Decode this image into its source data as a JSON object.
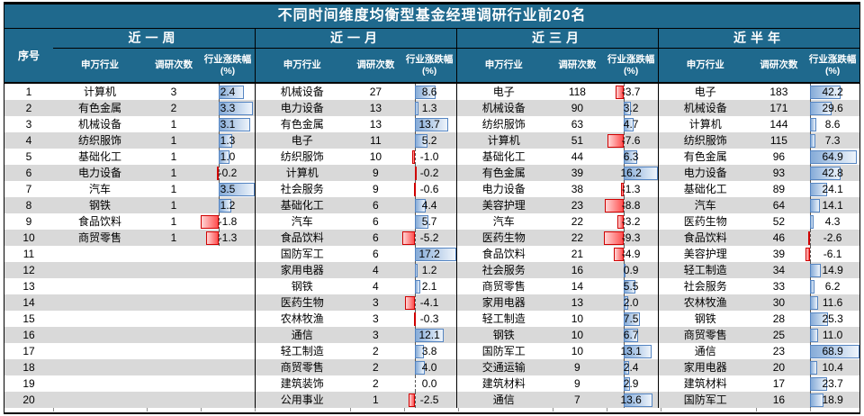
{
  "title": "不同时间维度均衡型基金经理调研行业前20名",
  "headers": {
    "rank": "序号",
    "industry": "申万行业",
    "count": "调研次数",
    "change": "行业涨跌幅",
    "change_unit": "(%)"
  },
  "ranks": [
    1,
    2,
    3,
    4,
    5,
    6,
    7,
    8,
    9,
    10,
    11,
    12,
    13,
    14,
    15,
    16,
    17,
    18,
    19,
    20
  ],
  "colors": {
    "header_bg": "#1F698D",
    "stripe": "#D9D9D9",
    "positive_bar_border": "#5585C2",
    "positive_bar_fill": "#85ABD8",
    "negative_bar_border": "#D00000",
    "negative_bar_fill": "#FF5050"
  },
  "chart_data": {
    "type": "table",
    "title": "不同时间维度均衡型基金经理调研行业前20名",
    "rank_header": "序号",
    "columns": [
      "申万行业",
      "调研次数",
      "行业涨跌幅(%)"
    ],
    "period_labels": [
      "近一周",
      "近一月",
      "近三月",
      "近半年"
    ],
    "bar_note": "positive change = blue data bar right of dashed axis, negative = red data bar left of axis",
    "periods": [
      {
        "name": "近一周",
        "rows": [
          [
            "计算机",
            3,
            2.4
          ],
          [
            "有色金属",
            2,
            3.3
          ],
          [
            "机械设备",
            1,
            3.1
          ],
          [
            "纺织服饰",
            1,
            1.3
          ],
          [
            "基础化工",
            1,
            1.0
          ],
          [
            "电力设备",
            1,
            -0.2
          ],
          [
            "汽车",
            1,
            3.5
          ],
          [
            "钢铁",
            1,
            1.2
          ],
          [
            "食品饮料",
            1,
            -1.8
          ],
          [
            "商贸零售",
            1,
            -1.3
          ],
          null,
          null,
          null,
          null,
          null,
          null,
          null,
          null,
          null,
          null
        ]
      },
      {
        "name": "近一月",
        "rows": [
          [
            "机械设备",
            27,
            8.6
          ],
          [
            "电力设备",
            13,
            1.3
          ],
          [
            "有色金属",
            13,
            13.7
          ],
          [
            "电子",
            11,
            5.2
          ],
          [
            "纺织服饰",
            10,
            -1.0
          ],
          [
            "计算机",
            9,
            -0.2
          ],
          [
            "社会服务",
            9,
            -0.6
          ],
          [
            "基础化工",
            6,
            4.4
          ],
          [
            "汽车",
            6,
            5.7
          ],
          [
            "食品饮料",
            6,
            -5.2
          ],
          [
            "国防军工",
            6,
            17.2
          ],
          [
            "家用电器",
            4,
            1.2
          ],
          [
            "钢铁",
            4,
            2.1
          ],
          [
            "医药生物",
            3,
            -4.1
          ],
          [
            "农林牧渔",
            3,
            -0.3
          ],
          [
            "通信",
            3,
            12.1
          ],
          [
            "轻工制造",
            2,
            3.8
          ],
          [
            "商贸零售",
            2,
            4.0
          ],
          [
            "建筑装饰",
            2,
            0.0
          ],
          [
            "公用事业",
            1,
            -2.5
          ]
        ]
      },
      {
        "name": "近三月",
        "rows": [
          [
            "电子",
            118,
            -3.7
          ],
          [
            "机械设备",
            90,
            3.2
          ],
          [
            "纺织服饰",
            63,
            4.7
          ],
          [
            "计算机",
            51,
            -7.6
          ],
          [
            "基础化工",
            44,
            6.3
          ],
          [
            "有色金属",
            39,
            16.2
          ],
          [
            "电力设备",
            38,
            -1.3
          ],
          [
            "美容护理",
            23,
            -8.8
          ],
          [
            "汽车",
            22,
            -3.2
          ],
          [
            "医药生物",
            22,
            -9.3
          ],
          [
            "食品饮料",
            21,
            -4.9
          ],
          [
            "社会服务",
            16,
            0.9
          ],
          [
            "商贸零售",
            14,
            5.5
          ],
          [
            "家用电器",
            13,
            2.0
          ],
          [
            "轻工制造",
            10,
            7.5
          ],
          [
            "钢铁",
            10,
            6.7
          ],
          [
            "国防军工",
            10,
            13.1
          ],
          [
            "交通运输",
            9,
            2.4
          ],
          [
            "建筑材料",
            9,
            2.9
          ],
          [
            "通信",
            7,
            13.6
          ]
        ]
      },
      {
        "name": "近半年",
        "rows": [
          [
            "电子",
            183,
            42.2
          ],
          [
            "机械设备",
            171,
            29.6
          ],
          [
            "计算机",
            144,
            8.6
          ],
          [
            "纺织服饰",
            115,
            7.3
          ],
          [
            "有色金属",
            96,
            64.9
          ],
          [
            "电力设备",
            93,
            42.8
          ],
          [
            "基础化工",
            89,
            24.1
          ],
          [
            "汽车",
            64,
            14.1
          ],
          [
            "医药生物",
            52,
            4.3
          ],
          [
            "食品饮料",
            46,
            -2.6
          ],
          [
            "美容护理",
            39,
            -6.1
          ],
          [
            "轻工制造",
            34,
            14.9
          ],
          [
            "社会服务",
            33,
            6.2
          ],
          [
            "农林牧渔",
            30,
            11.6
          ],
          [
            "钢铁",
            28,
            25.3
          ],
          [
            "商贸零售",
            25,
            11.0
          ],
          [
            "通信",
            23,
            68.9
          ],
          [
            "家用电器",
            20,
            10.4
          ],
          [
            "建筑材料",
            17,
            23.7
          ],
          [
            "国防军工",
            16,
            18.9
          ]
        ]
      }
    ]
  }
}
